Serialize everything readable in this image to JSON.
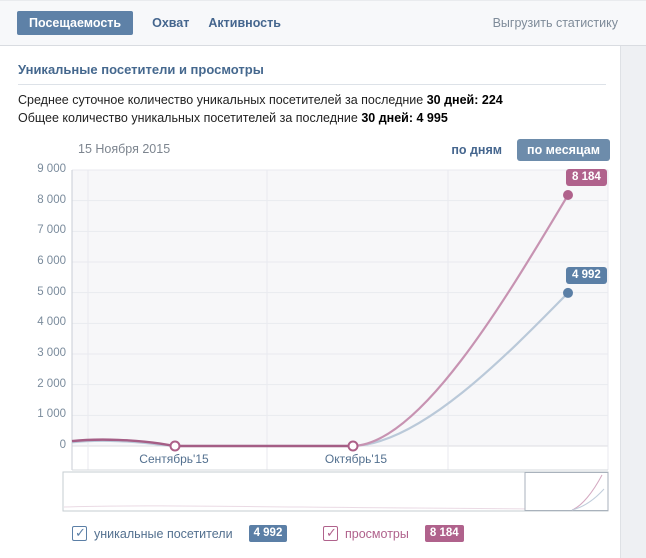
{
  "tabs": {
    "selected": "Посещаемость",
    "others": [
      "Охват",
      "Активность"
    ],
    "export": "Выгрузить статистику"
  },
  "section": {
    "title": "Уникальные посетители и просмотры"
  },
  "stats": {
    "line1": {
      "prefix": "Среднее суточное количество уникальных посетителей за последние",
      "bold": "30 дней:",
      "value": "224"
    },
    "line2": {
      "prefix": "Общее количество уникальных посетителей за последние",
      "bold": "30 дней:",
      "value": "4 995"
    }
  },
  "chart_header": {
    "by_days": "по дням",
    "by_months": "по месяцам"
  },
  "chart_data": {
    "type": "line",
    "title": "Уникальные посетители и просмотры",
    "date_label": "15 Ноября 2015",
    "grid": true,
    "legend_position": "bottom",
    "y_axis": {
      "min": 0,
      "max": 9000,
      "tick_step": 1000,
      "tick_labels": [
        "9 000",
        "8 000",
        "7 000",
        "6 000",
        "5 000",
        "4 000",
        "3 000",
        "2 000",
        "1 000",
        "0"
      ]
    },
    "x_axis": {
      "month_labels": [
        "Сентябрь'15",
        "Октябрь'15"
      ]
    },
    "series": [
      {
        "name": "просмотры",
        "color": "#b0628c",
        "curve_color": "#c793b2",
        "final_value": 8184,
        "final_label": "8 184",
        "points": [
          {
            "x": "left-edge",
            "value": 160
          },
          {
            "x": "Сентябрь'15",
            "value": 0
          },
          {
            "x": "Октябрь'15",
            "value": 0
          },
          {
            "x": "15 Ноября 2015",
            "value": 8184
          }
        ]
      },
      {
        "name": "уникальные посетители",
        "color": "#5b7fa6",
        "curve_color": "#bac9d9",
        "final_value": 4992,
        "final_label": "4 992",
        "points": [
          {
            "x": "left-edge",
            "value": 120
          },
          {
            "x": "Сентябрь'15",
            "value": 0
          },
          {
            "x": "Октябрь'15",
            "value": 0
          },
          {
            "x": "15 Ноября 2015",
            "value": 4992
          }
        ]
      }
    ],
    "overlap_flat_color": "#a55e86"
  },
  "legend": {
    "items": [
      {
        "label": "уникальные посетители",
        "value_badge": "4 992",
        "color": "#5b7fa6",
        "label_color": "#53708f",
        "checked": true
      },
      {
        "label": "просмотры",
        "value_badge": "8 184",
        "color": "#b0628c",
        "label_color": "#b0628c",
        "checked": true
      }
    ]
  },
  "icons": {
    "check": "✓"
  }
}
